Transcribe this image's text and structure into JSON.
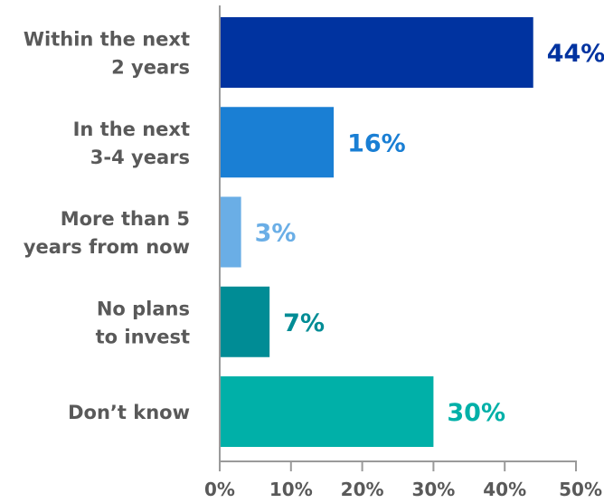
{
  "chart_data": {
    "type": "bar",
    "orientation": "horizontal",
    "title": "",
    "xlabel": "",
    "ylabel": "",
    "categories": [
      [
        "Within the next",
        "2 years"
      ],
      [
        "In the next",
        "3-4 years"
      ],
      [
        "More than 5",
        "years from now"
      ],
      [
        "No plans",
        "to invest"
      ],
      [
        "Don’t know"
      ]
    ],
    "values": [
      44,
      16,
      3,
      7,
      30
    ],
    "value_labels": [
      "44%",
      "16%",
      "3%",
      "7%",
      "30%"
    ],
    "colors": [
      "#0033a0",
      "#1a7fd4",
      "#6aaee6",
      "#008c95",
      "#00b0a8"
    ],
    "xlim": [
      0,
      50
    ],
    "x_ticks": [
      0,
      10,
      20,
      30,
      40,
      50
    ],
    "x_tick_labels": [
      "0%",
      "10%",
      "20%",
      "30%",
      "40%",
      "50%"
    ],
    "grid": false,
    "legend": "none"
  }
}
